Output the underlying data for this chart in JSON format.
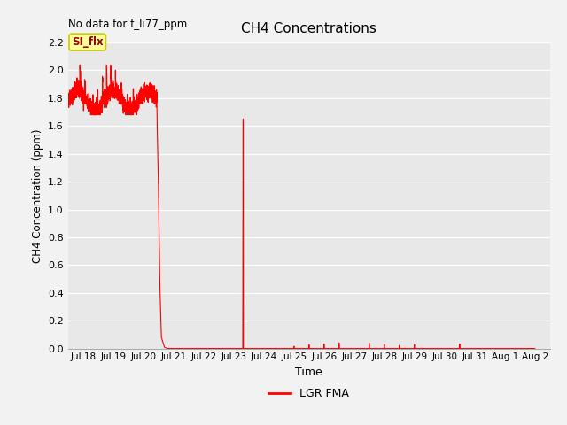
{
  "title": "CH4 Concentrations",
  "xlabel": "Time",
  "ylabel": "CH4 Concentration (ppm)",
  "top_left_text": "No data for f_li77_ppm",
  "legend_label": "LGR FMA",
  "legend_color": "#ff0000",
  "si_flx_label": "SI_flx",
  "si_flx_box_color": "#ffff99",
  "si_flx_text_color": "#990000",
  "si_flx_edge_color": "#cccc00",
  "line_color": "#ff0000",
  "fig_bg_color": "#f2f2f2",
  "plot_bg_color": "#e8e8e8",
  "grid_color": "#ffffff",
  "ylim": [
    0.0,
    2.2
  ],
  "yticks": [
    0.0,
    0.2,
    0.4,
    0.6,
    0.8,
    1.0,
    1.2,
    1.4,
    1.6,
    1.8,
    2.0,
    2.2
  ],
  "figsize": [
    6.4,
    4.8
  ],
  "dpi": 100,
  "xtick_labels": [
    "Jul 18",
    "Jul 19",
    "Jul 20",
    "Jul 21",
    "Jul 22",
    "Jul 23",
    "Jul 24",
    "Jul 25",
    "Jul 26",
    "Jul 27",
    "Jul 28",
    "Jul 29",
    "Jul 30",
    "Jul 31",
    "Aug 1",
    "Aug 2"
  ],
  "xtick_positions": [
    1,
    2,
    3,
    4,
    5,
    6,
    7,
    8,
    9,
    10,
    11,
    12,
    13,
    14,
    15,
    16
  ],
  "xlim": [
    0.5,
    16.5
  ]
}
